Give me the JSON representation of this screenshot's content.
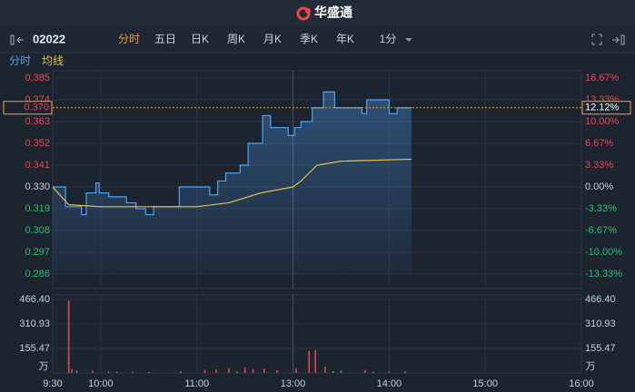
{
  "header": {
    "title": "华盛通"
  },
  "toolbar": {
    "code": "02022",
    "tabs": [
      "分时",
      "五日",
      "日K",
      "周K",
      "月K",
      "季K",
      "年K",
      "1分"
    ],
    "active_tab": 0
  },
  "chart_data": {
    "type": "line",
    "xticks": [
      "9:30",
      "10:00",
      "11:00",
      "13:00",
      "14:00",
      "15:00",
      "16:00"
    ],
    "ylim": [
      0.286,
      0.385
    ],
    "yticks": [
      0.385,
      0.374,
      0.363,
      0.352,
      0.341,
      {
        "value": 0.33,
        "label": "0.330"
      },
      0.319,
      0.308,
      0.297,
      0.286
    ],
    "y2lim": [
      -13.33,
      16.67
    ],
    "y2ticks": [
      {
        "value": 16.67,
        "label": "16.67%"
      },
      {
        "value": 13.33,
        "label": "13.33%"
      },
      {
        "value": 10,
        "label": "10.00%"
      },
      {
        "value": 6.67,
        "label": "6.67%"
      },
      {
        "value": 3.33,
        "label": "3.33%"
      },
      {
        "value": 0,
        "label": "0.00%"
      },
      {
        "value": -3.33,
        "label": "-3.33%"
      },
      {
        "value": -6.67,
        "label": "-6.67%"
      },
      {
        "value": -10,
        "label": "-10.00%"
      },
      {
        "value": -13.33,
        "label": "-13.33%"
      }
    ],
    "last_price": {
      "value": 0.37,
      "label": "0.370"
    },
    "last_change": {
      "value": 12.12,
      "label": "12.12%"
    },
    "series": [
      {
        "name": "分时",
        "color": "#4fa3f7",
        "x": [
          "9:30",
          "9:38",
          "9:48",
          "9:51",
          "9:57",
          "9:59",
          "10:05",
          "10:16",
          "10:22",
          "10:28",
          "10:33",
          "10:49",
          "11:08",
          "11:13",
          "11:18",
          "11:27",
          "11:32",
          "11:41",
          "11:46",
          "11:57",
          "13:01",
          "13:05",
          "13:12",
          "13:19",
          "13:26",
          "13:43",
          "13:46",
          "14:00",
          "14:05",
          "14:14"
        ],
        "values": [
          0.33,
          0.32,
          0.316,
          0.327,
          0.332,
          0.327,
          0.325,
          0.322,
          0.319,
          0.316,
          0.32,
          0.33,
          0.326,
          0.333,
          0.337,
          0.341,
          0.352,
          0.366,
          0.36,
          0.356,
          0.36,
          0.363,
          0.37,
          0.378,
          0.37,
          0.367,
          0.374,
          0.367,
          0.37,
          0.37
        ]
      },
      {
        "name": "均线",
        "color": "#e8c14a",
        "x": [
          "9:30",
          "9:40",
          "10:00",
          "10:30",
          "11:00",
          "11:20",
          "11:40",
          "12:00",
          "13:05",
          "13:15",
          "13:30",
          "14:14"
        ],
        "values": [
          0.33,
          0.321,
          0.32,
          0.32,
          0.32,
          0.322,
          0.327,
          0.33,
          0.333,
          0.341,
          0.343,
          0.344
        ]
      }
    ],
    "volume": {
      "ylim": [
        0,
        466.4
      ],
      "yticks": [
        {
          "value": 466.4,
          "label": "466.40"
        },
        310.93,
        155.47
      ],
      "unit": "万",
      "series": [
        {
          "color": "#e84a4a",
          "x": [
            "9:40",
            "9:42",
            "9:55",
            "10:05",
            "10:20",
            "10:50",
            "11:05",
            "11:12",
            "11:20",
            "11:30",
            "11:35",
            "11:42",
            "11:50",
            "13:02",
            "13:10",
            "13:14",
            "13:20",
            "13:30",
            "13:45",
            "14:00",
            "14:10"
          ],
          "values": [
            460,
            25,
            15,
            10,
            8,
            12,
            20,
            22,
            30,
            35,
            25,
            28,
            18,
            30,
            140,
            145,
            40,
            15,
            20,
            10,
            12
          ]
        },
        {
          "color": "#2ebf6e",
          "x": [
            "9:45",
            "10:10",
            "10:30",
            "11:25",
            "13:25",
            "13:50"
          ],
          "values": [
            15,
            8,
            6,
            10,
            12,
            8
          ]
        }
      ]
    }
  }
}
